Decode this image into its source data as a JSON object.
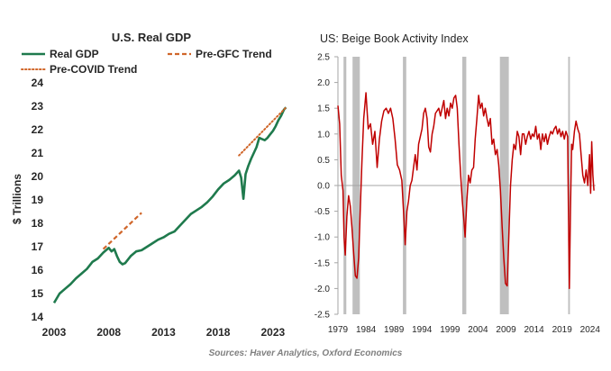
{
  "source_note": "Sources: Haver Analytics, Oxford Economics",
  "colors": {
    "real_gdp": "#1f7a4d",
    "pre_gfc": "#d0662a",
    "pre_covid": "#d0662a",
    "beige": "#c00000",
    "recession": "#bfbfbf",
    "axis_text": "#262626"
  },
  "chart_data": [
    {
      "type": "line",
      "title": "U.S. Real GDP",
      "ylabel": "$ Trillions",
      "xlabel": "",
      "xlim": [
        2003,
        2024
      ],
      "ylim": [
        14,
        24
      ],
      "x_ticks": [
        "2003",
        "2008",
        "2013",
        "2018",
        "2023"
      ],
      "y_ticks": [
        "14",
        "15",
        "16",
        "17",
        "18",
        "19",
        "20",
        "21",
        "22",
        "23",
        "24"
      ],
      "legend": "top-left",
      "grid": false,
      "series": [
        {
          "name": "Real GDP",
          "style": "solid",
          "points": [
            [
              2003.0,
              14.6
            ],
            [
              2003.5,
              15.0
            ],
            [
              2004.0,
              15.2
            ],
            [
              2004.5,
              15.4
            ],
            [
              2005.0,
              15.65
            ],
            [
              2005.5,
              15.85
            ],
            [
              2006.0,
              16.05
            ],
            [
              2006.5,
              16.35
            ],
            [
              2007.0,
              16.5
            ],
            [
              2007.5,
              16.75
            ],
            [
              2008.0,
              16.95
            ],
            [
              2008.25,
              16.8
            ],
            [
              2008.5,
              16.9
            ],
            [
              2008.75,
              16.6
            ],
            [
              2009.0,
              16.35
            ],
            [
              2009.25,
              16.25
            ],
            [
              2009.5,
              16.3
            ],
            [
              2010.0,
              16.6
            ],
            [
              2010.5,
              16.8
            ],
            [
              2011.0,
              16.85
            ],
            [
              2011.5,
              17.0
            ],
            [
              2012.0,
              17.15
            ],
            [
              2012.5,
              17.3
            ],
            [
              2013.0,
              17.4
            ],
            [
              2013.5,
              17.55
            ],
            [
              2014.0,
              17.65
            ],
            [
              2014.5,
              17.9
            ],
            [
              2015.0,
              18.15
            ],
            [
              2015.5,
              18.4
            ],
            [
              2016.0,
              18.55
            ],
            [
              2016.5,
              18.7
            ],
            [
              2017.0,
              18.9
            ],
            [
              2017.5,
              19.15
            ],
            [
              2018.0,
              19.45
            ],
            [
              2018.5,
              19.7
            ],
            [
              2019.0,
              19.85
            ],
            [
              2019.5,
              20.05
            ],
            [
              2019.9,
              20.25
            ],
            [
              2020.1,
              19.95
            ],
            [
              2020.3,
              19.05
            ],
            [
              2020.5,
              20.1
            ],
            [
              2020.75,
              20.45
            ],
            [
              2021.0,
              20.75
            ],
            [
              2021.25,
              21.0
            ],
            [
              2021.5,
              21.25
            ],
            [
              2021.75,
              21.65
            ],
            [
              2022.0,
              21.6
            ],
            [
              2022.25,
              21.55
            ],
            [
              2022.5,
              21.65
            ],
            [
              2022.75,
              21.8
            ],
            [
              2023.0,
              21.95
            ],
            [
              2023.25,
              22.15
            ],
            [
              2023.5,
              22.4
            ],
            [
              2023.75,
              22.6
            ],
            [
              2024.0,
              22.85
            ],
            [
              2024.2,
              22.95
            ]
          ]
        },
        {
          "name": "Pre-GFC Trend",
          "style": "dashed",
          "points": [
            [
              2007.5,
              16.9
            ],
            [
              2011.0,
              18.45
            ]
          ]
        },
        {
          "name": "Pre-COVID Trend",
          "style": "dotted",
          "points": [
            [
              2019.9,
              20.9
            ],
            [
              2024.2,
              22.95
            ]
          ]
        }
      ]
    },
    {
      "type": "line",
      "title": "US: Beige Book Activity Index",
      "xlabel": "",
      "ylabel": "",
      "xlim": [
        1979,
        2025
      ],
      "ylim": [
        -2.5,
        2.5
      ],
      "x_ticks": [
        "1979",
        "1984",
        "1989",
        "1994",
        "1999",
        "2004",
        "2009",
        "2014",
        "2019",
        "2024"
      ],
      "y_ticks": [
        "-2.5",
        "-2.0",
        "-1.5",
        "-1.0",
        "-0.5",
        "0.0",
        "0.5",
        "1.0",
        "1.5",
        "2.0",
        "2.5"
      ],
      "grid": false,
      "recessions": [
        [
          1980.0,
          1980.5
        ],
        [
          1981.6,
          1982.9
        ],
        [
          1990.6,
          1991.2
        ],
        [
          2001.2,
          2001.9
        ],
        [
          2007.9,
          2009.5
        ],
        [
          2020.1,
          2020.4
        ]
      ],
      "series": [
        {
          "name": "Beige Book Activity Index",
          "points": [
            [
              1979.0,
              1.55
            ],
            [
              1979.3,
              1.2
            ],
            [
              1979.6,
              0.2
            ],
            [
              1979.9,
              -0.1
            ],
            [
              1980.1,
              -1.0
            ],
            [
              1980.3,
              -1.35
            ],
            [
              1980.6,
              -0.6
            ],
            [
              1980.9,
              -0.2
            ],
            [
              1981.2,
              -0.4
            ],
            [
              1981.5,
              -0.8
            ],
            [
              1981.8,
              -1.3
            ],
            [
              1982.1,
              -1.75
            ],
            [
              1982.4,
              -1.8
            ],
            [
              1982.7,
              -1.4
            ],
            [
              1983.0,
              -0.4
            ],
            [
              1983.3,
              0.5
            ],
            [
              1983.6,
              1.3
            ],
            [
              1984.0,
              1.8
            ],
            [
              1984.4,
              1.1
            ],
            [
              1984.8,
              1.2
            ],
            [
              1985.2,
              0.8
            ],
            [
              1985.6,
              1.05
            ],
            [
              1986.0,
              0.35
            ],
            [
              1986.4,
              0.9
            ],
            [
              1986.8,
              1.25
            ],
            [
              1987.2,
              1.45
            ],
            [
              1987.6,
              1.5
            ],
            [
              1988.0,
              1.4
            ],
            [
              1988.4,
              1.5
            ],
            [
              1988.8,
              1.3
            ],
            [
              1989.2,
              0.9
            ],
            [
              1989.6,
              0.4
            ],
            [
              1990.0,
              0.3
            ],
            [
              1990.4,
              0.1
            ],
            [
              1990.8,
              -0.7
            ],
            [
              1991.0,
              -1.15
            ],
            [
              1991.3,
              -0.5
            ],
            [
              1991.6,
              -0.3
            ],
            [
              1991.9,
              0.0
            ],
            [
              1992.2,
              0.1
            ],
            [
              1992.5,
              0.35
            ],
            [
              1992.8,
              0.6
            ],
            [
              1993.1,
              0.3
            ],
            [
              1993.4,
              0.8
            ],
            [
              1993.7,
              0.95
            ],
            [
              1994.0,
              1.1
            ],
            [
              1994.3,
              1.4
            ],
            [
              1994.6,
              1.5
            ],
            [
              1994.9,
              1.3
            ],
            [
              1995.2,
              0.75
            ],
            [
              1995.5,
              0.65
            ],
            [
              1995.8,
              1.0
            ],
            [
              1996.1,
              1.15
            ],
            [
              1996.4,
              1.4
            ],
            [
              1996.7,
              1.45
            ],
            [
              1997.0,
              1.5
            ],
            [
              1997.3,
              1.35
            ],
            [
              1997.6,
              1.5
            ],
            [
              1997.9,
              1.65
            ],
            [
              1998.2,
              1.3
            ],
            [
              1998.5,
              1.5
            ],
            [
              1998.8,
              1.35
            ],
            [
              1999.1,
              1.6
            ],
            [
              1999.4,
              1.5
            ],
            [
              1999.7,
              1.7
            ],
            [
              2000.0,
              1.75
            ],
            [
              2000.3,
              1.5
            ],
            [
              2000.6,
              0.8
            ],
            [
              2000.9,
              0.2
            ],
            [
              2001.2,
              -0.3
            ],
            [
              2001.5,
              -0.7
            ],
            [
              2001.7,
              -1.0
            ],
            [
              2002.0,
              -0.3
            ],
            [
              2002.3,
              0.2
            ],
            [
              2002.6,
              0.05
            ],
            [
              2002.9,
              0.3
            ],
            [
              2003.2,
              0.35
            ],
            [
              2003.5,
              0.9
            ],
            [
              2003.8,
              1.3
            ],
            [
              2004.1,
              1.75
            ],
            [
              2004.4,
              1.5
            ],
            [
              2004.7,
              1.6
            ],
            [
              2005.0,
              1.35
            ],
            [
              2005.3,
              1.5
            ],
            [
              2005.6,
              1.3
            ],
            [
              2005.9,
              1.15
            ],
            [
              2006.2,
              1.3
            ],
            [
              2006.5,
              0.8
            ],
            [
              2006.8,
              0.9
            ],
            [
              2007.1,
              0.6
            ],
            [
              2007.4,
              0.7
            ],
            [
              2007.7,
              0.4
            ],
            [
              2008.0,
              -0.1
            ],
            [
              2008.3,
              -0.8
            ],
            [
              2008.6,
              -1.4
            ],
            [
              2008.9,
              -1.9
            ],
            [
              2009.2,
              -1.95
            ],
            [
              2009.5,
              -1.0
            ],
            [
              2009.8,
              0.0
            ],
            [
              2010.1,
              0.5
            ],
            [
              2010.4,
              0.8
            ],
            [
              2010.7,
              0.7
            ],
            [
              2011.0,
              1.05
            ],
            [
              2011.3,
              0.95
            ],
            [
              2011.6,
              0.6
            ],
            [
              2011.9,
              1.0
            ],
            [
              2012.2,
              1.0
            ],
            [
              2012.5,
              0.8
            ],
            [
              2012.8,
              0.95
            ],
            [
              2013.1,
              1.05
            ],
            [
              2013.4,
              0.9
            ],
            [
              2013.7,
              1.0
            ],
            [
              2014.0,
              0.95
            ],
            [
              2014.3,
              1.15
            ],
            [
              2014.6,
              0.9
            ],
            [
              2014.9,
              1.0
            ],
            [
              2015.2,
              0.7
            ],
            [
              2015.5,
              1.0
            ],
            [
              2015.8,
              0.85
            ],
            [
              2016.1,
              1.0
            ],
            [
              2016.4,
              0.8
            ],
            [
              2016.7,
              0.95
            ],
            [
              2017.0,
              1.05
            ],
            [
              2017.3,
              1.0
            ],
            [
              2017.6,
              1.1
            ],
            [
              2017.9,
              1.15
            ],
            [
              2018.2,
              1.0
            ],
            [
              2018.5,
              1.1
            ],
            [
              2018.8,
              0.95
            ],
            [
              2019.1,
              1.05
            ],
            [
              2019.4,
              0.9
            ],
            [
              2019.7,
              1.05
            ],
            [
              2020.0,
              0.95
            ],
            [
              2020.2,
              -1.2
            ],
            [
              2020.3,
              -2.0
            ],
            [
              2020.5,
              -0.5
            ],
            [
              2020.7,
              0.8
            ],
            [
              2020.9,
              0.7
            ],
            [
              2021.2,
              1.05
            ],
            [
              2021.5,
              1.25
            ],
            [
              2021.8,
              1.1
            ],
            [
              2022.1,
              1.0
            ],
            [
              2022.4,
              0.6
            ],
            [
              2022.7,
              0.2
            ],
            [
              2023.0,
              0.05
            ],
            [
              2023.3,
              0.3
            ],
            [
              2023.6,
              0.0
            ],
            [
              2023.9,
              0.6
            ],
            [
              2024.1,
              -0.15
            ],
            [
              2024.3,
              0.85
            ],
            [
              2024.5,
              0.2
            ],
            [
              2024.7,
              -0.1
            ]
          ]
        }
      ]
    }
  ]
}
